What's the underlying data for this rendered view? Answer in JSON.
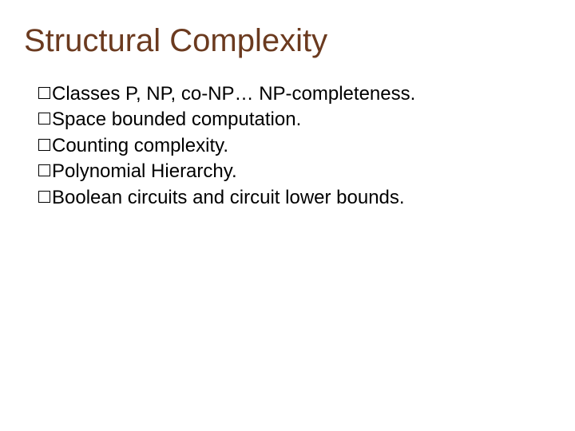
{
  "slide": {
    "title": "Structural Complexity",
    "title_color": "#6b3a1f",
    "title_fontsize": 40,
    "body_fontsize": 24,
    "body_color": "#000000",
    "background_color": "#ffffff",
    "bullet_style": "hollow-square",
    "bullets": [
      "Classes P, NP, co-NP… NP-completeness.",
      "Space bounded computation.",
      "Counting complexity.",
      "Polynomial Hierarchy.",
      "Boolean circuits and circuit lower bounds."
    ]
  }
}
